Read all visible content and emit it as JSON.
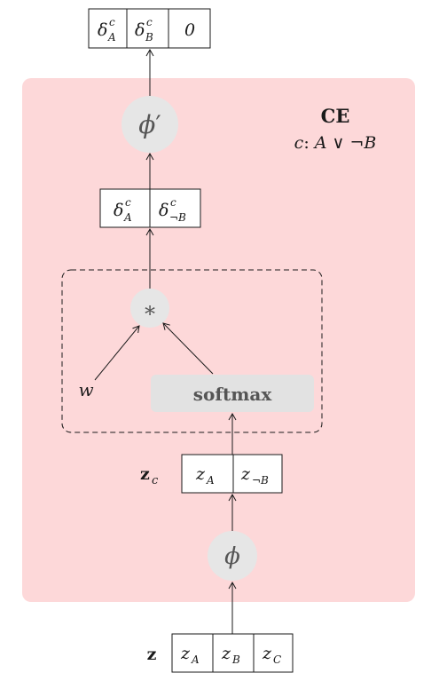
{
  "colors": {
    "block_bg": "#fdd8d9",
    "node_fill": "#e6e6e6",
    "softmax_fill": "#e2e2e2",
    "stroke": "#1a1a1a",
    "node_text": "#555555"
  },
  "title": "CE",
  "constraint": {
    "var": "c",
    "colon": ":",
    "formula": "A ∨ ¬B"
  },
  "output_vector": [
    {
      "sym": "δ",
      "sup": "c",
      "sub": "A"
    },
    {
      "sym": "δ",
      "sup": "c",
      "sub": "B"
    },
    {
      "sym": "0",
      "sup": "",
      "sub": ""
    }
  ],
  "phi_prime_node": {
    "sym": "ϕ",
    "prime": "′"
  },
  "mid_vector": [
    {
      "sym": "δ",
      "sup": "c",
      "sub": "A"
    },
    {
      "sym": "δ",
      "sup": "c",
      "sub": "¬B"
    }
  ],
  "mult_node": "∗",
  "weight_label": "w",
  "softmax_label": "softmax",
  "zc_label": {
    "sym": "z",
    "sub": "c"
  },
  "zc_vector": [
    {
      "sym": "z",
      "sub": "A"
    },
    {
      "sym": "z",
      "sub": "¬B"
    }
  ],
  "phi_node": "ϕ",
  "z_label": "z",
  "z_vector": [
    {
      "sym": "z",
      "sub": "A"
    },
    {
      "sym": "z",
      "sub": "B"
    },
    {
      "sym": "z",
      "sub": "C"
    }
  ]
}
